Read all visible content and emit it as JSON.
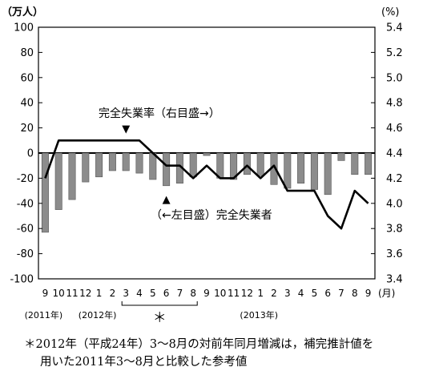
{
  "chart_data": {
    "type": "bar+line",
    "left_axis_unit": "（万人）",
    "right_axis_unit": "(%)",
    "left_ticks": [
      100,
      80,
      60,
      40,
      20,
      0,
      -20,
      -40,
      -60,
      -80,
      -100
    ],
    "right_ticks": [
      "5.4",
      "5.2",
      "5.0",
      "4.8",
      "4.6",
      "4.4",
      "4.2",
      "4.0",
      "3.8",
      "3.6",
      "3.4"
    ],
    "left_ylim": [
      -100,
      100
    ],
    "right_ylim": [
      3.4,
      5.4
    ],
    "categories": [
      "9",
      "10",
      "11",
      "12",
      "1",
      "2",
      "3",
      "4",
      "5",
      "6",
      "7",
      "8",
      "9",
      "10",
      "11",
      "12",
      "1",
      "2",
      "3",
      "4",
      "5",
      "6",
      "7",
      "8",
      "9"
    ],
    "x_unit": "(月)",
    "year_labels": [
      {
        "label": "(2011年)",
        "at_index": 0
      },
      {
        "label": "(2012年)",
        "at_index": 4
      },
      {
        "label": "(2013年)",
        "at_index": 16
      }
    ],
    "bracket": {
      "from_index": 6,
      "to_index": 11,
      "mark": "＊"
    },
    "series": [
      {
        "name": "完全失業者",
        "axis": "left",
        "kind": "bar",
        "values": [
          -63,
          -45,
          -37,
          -23,
          -19,
          -14,
          -14,
          -16,
          -21,
          -26,
          -24,
          -19,
          -2,
          -20,
          -21,
          -17,
          -18,
          -25,
          -28,
          -24,
          -29,
          -33,
          -6,
          -17,
          -17
        ],
        "color": "#8c8c8c"
      },
      {
        "name": "完全失業率",
        "axis": "right",
        "kind": "line",
        "values": [
          4.2,
          4.5,
          4.5,
          4.5,
          4.5,
          4.5,
          4.5,
          4.5,
          4.4,
          4.3,
          4.3,
          4.2,
          4.3,
          4.2,
          4.2,
          4.3,
          4.2,
          4.3,
          4.1,
          4.1,
          4.1,
          3.9,
          3.8,
          4.1,
          4.0
        ],
        "color": "#000000"
      }
    ],
    "annotations": [
      {
        "text": "完全失業率（右目盛→）",
        "marker": "▼",
        "marker_index": 6
      },
      {
        "text": "（←左目盛）完全失業者",
        "marker": "▲",
        "marker_index": 9
      }
    ],
    "grid": false
  },
  "notes": {
    "line1": "＊2012年（平成24年）3～8月の対前年同月増減は，補完推計値を",
    "line2": "用いた2011年3～8月と比較した参考値"
  }
}
